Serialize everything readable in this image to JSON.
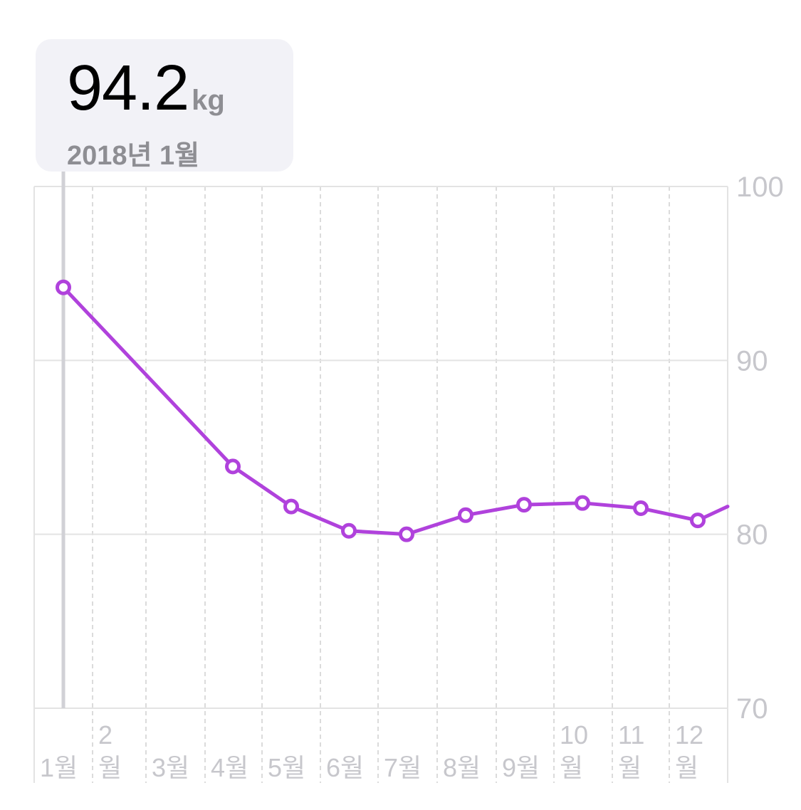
{
  "tooltip": {
    "value": "94.2",
    "unit": "kg",
    "date": "2018년 1월"
  },
  "chart_data": {
    "type": "line",
    "categories": [
      "1월",
      "2월",
      "3월",
      "4월",
      "5월",
      "6월",
      "7월",
      "8월",
      "9월",
      "10월",
      "11월",
      "12월"
    ],
    "x_tick_labels": [
      [
        "",
        "1월"
      ],
      [
        "2",
        "월"
      ],
      [
        "",
        "3월"
      ],
      [
        "",
        "4월"
      ],
      [
        "",
        "5월"
      ],
      [
        "",
        "6월"
      ],
      [
        "",
        "7월"
      ],
      [
        "",
        "8월"
      ],
      [
        "",
        "9월"
      ],
      [
        "10",
        "월"
      ],
      [
        "11",
        "월"
      ],
      [
        "12",
        "월"
      ]
    ],
    "series": [
      {
        "x": [
          0,
          3,
          4,
          5,
          6,
          7,
          8,
          9,
          10,
          11
        ],
        "values": [
          94.2,
          83.9,
          81.6,
          80.2,
          80.0,
          81.1,
          81.7,
          81.8,
          81.5,
          80.8
        ],
        "continues_to": 81.6
      }
    ],
    "ylim": [
      70,
      100
    ],
    "y_ticks": [
      100,
      90,
      80,
      70
    ],
    "y_axis_position": "right",
    "grid": true,
    "selected_index": 0,
    "colors": {
      "line": "#b042dc",
      "marker_fill": "#ffffff",
      "grid_solid": "#e3e3e3",
      "grid_dashed": "#cfcfcf",
      "axis_label": "#c7c7cc",
      "selection_line": "#d1d1d6"
    }
  }
}
